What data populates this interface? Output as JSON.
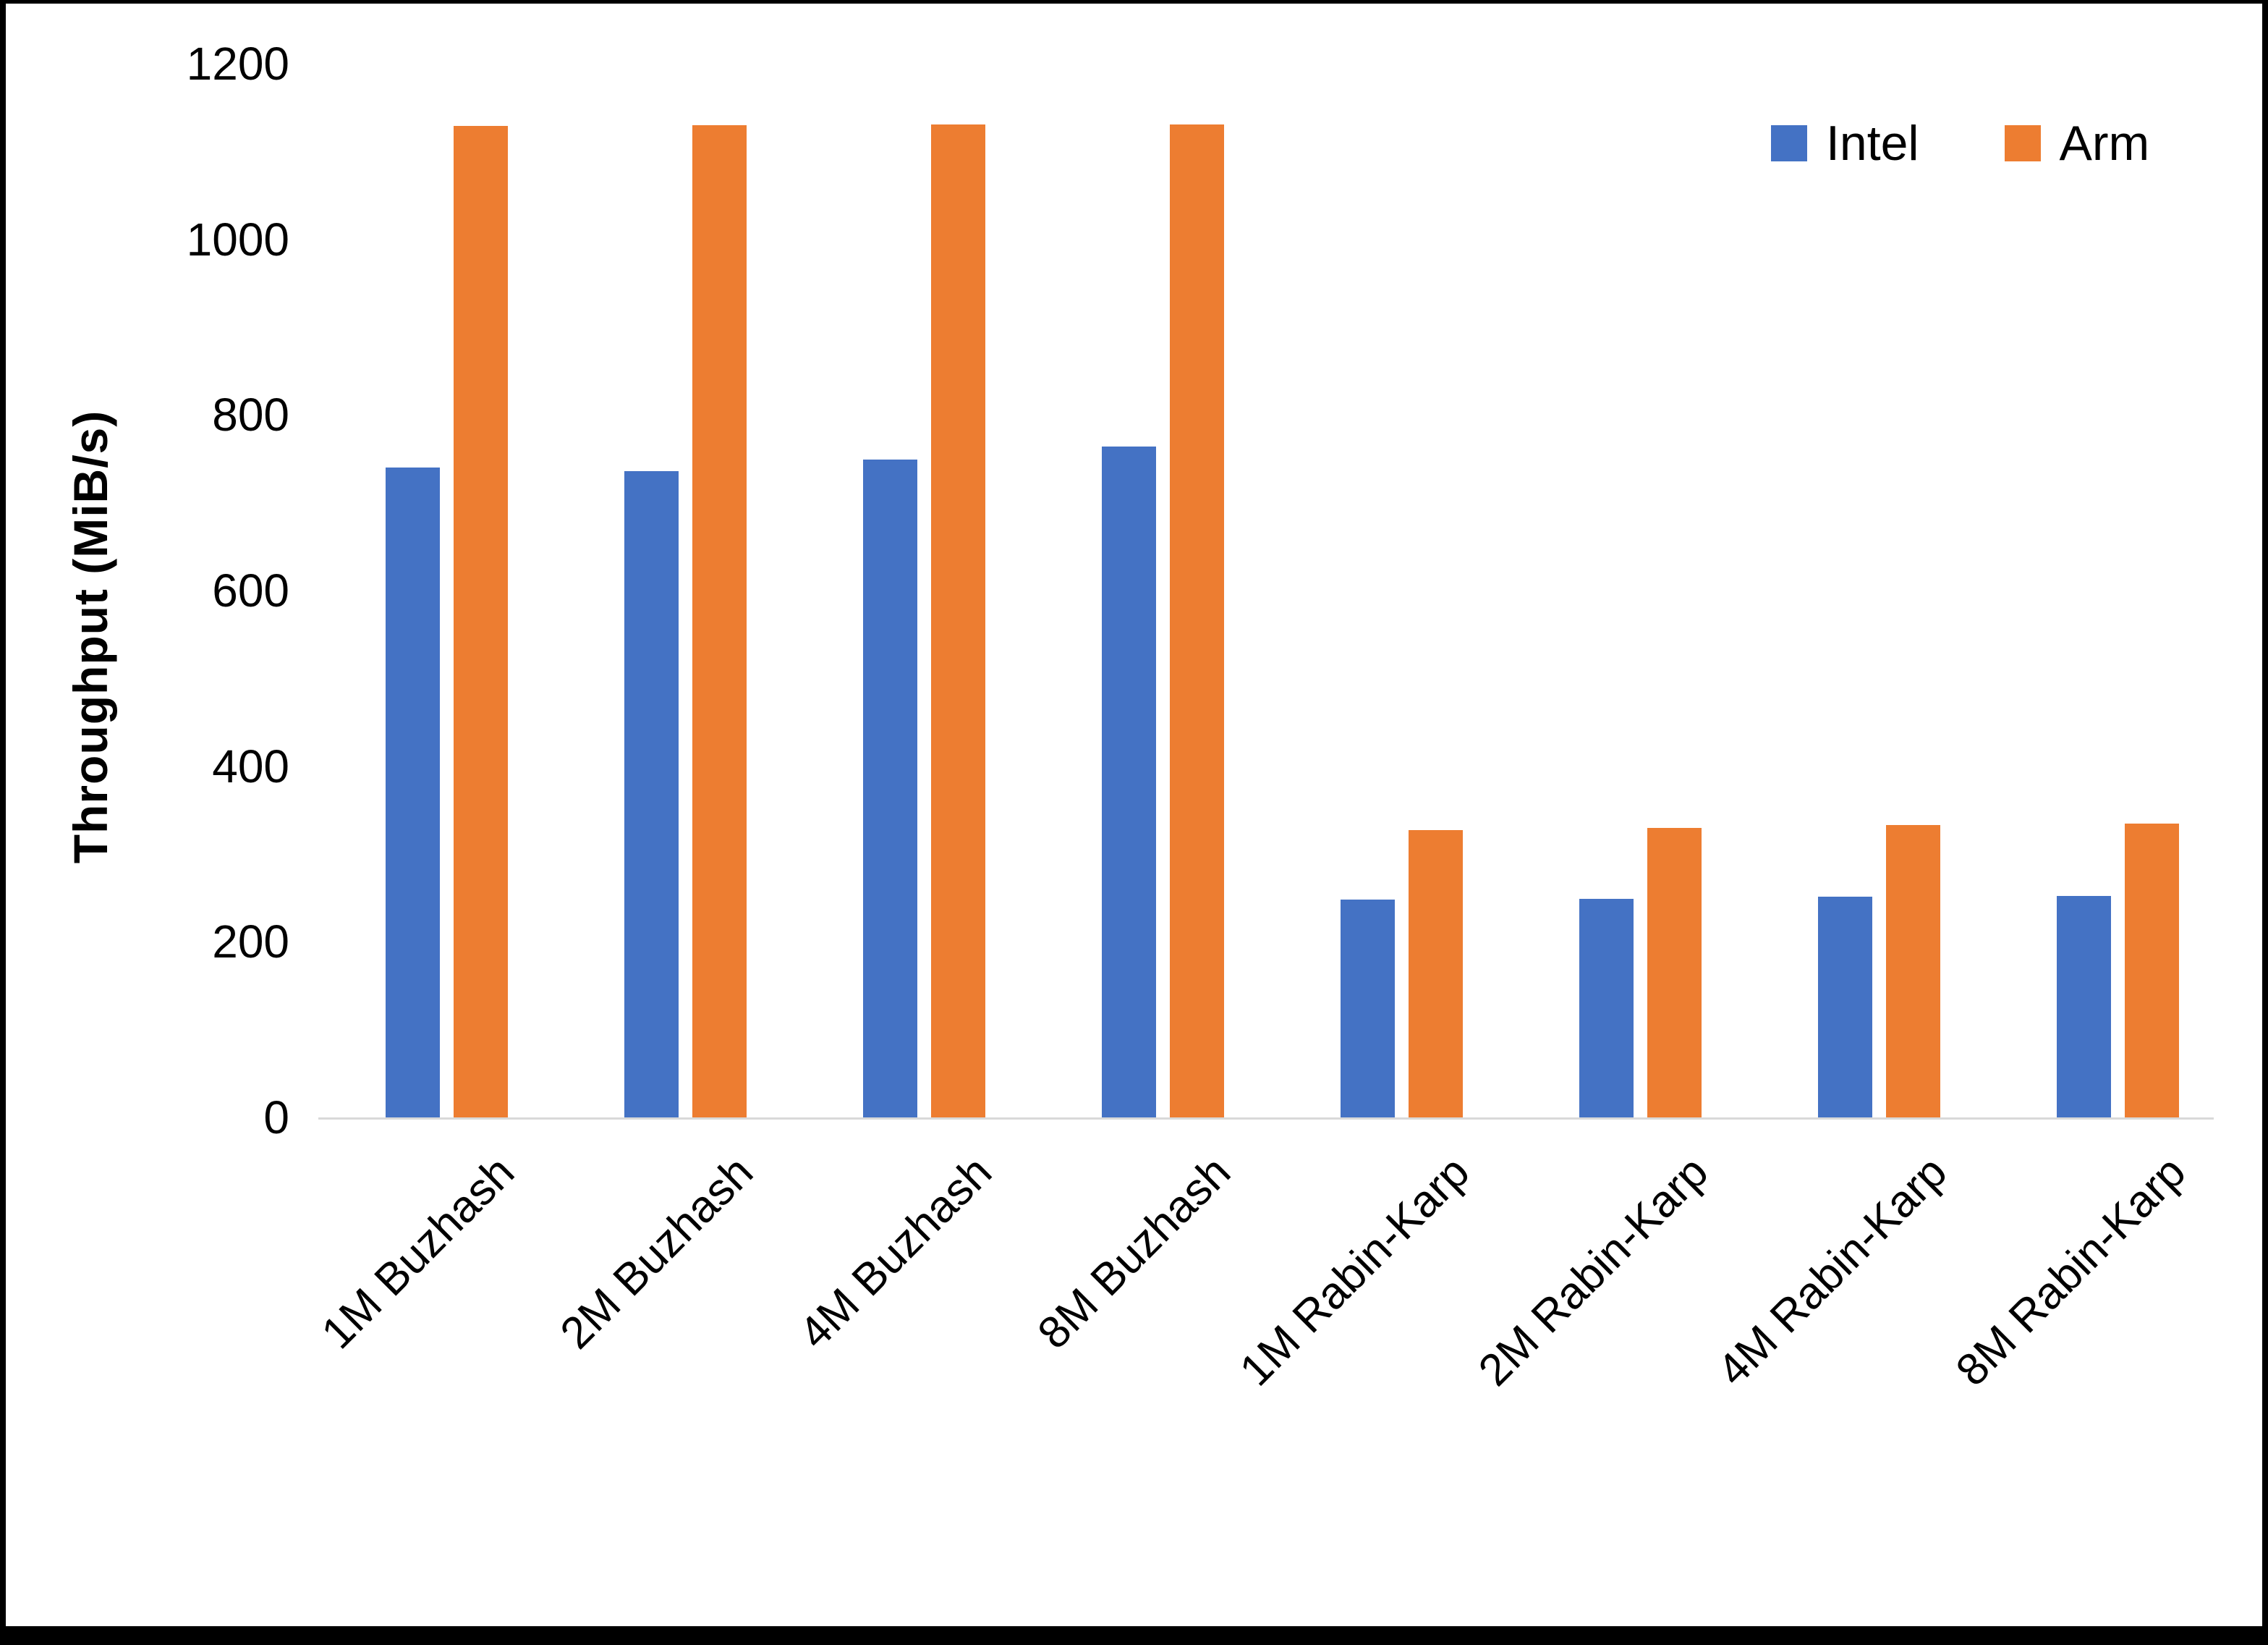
{
  "chart_data": {
    "type": "bar",
    "title": "",
    "xlabel": "",
    "ylabel": "Throughput (MiB/s)",
    "ylim": [
      0,
      1200
    ],
    "yticks": [
      0,
      200,
      400,
      600,
      800,
      1000,
      1200
    ],
    "grid": false,
    "legend_position": "top-right",
    "categories": [
      "1M Buzhash",
      "2M Buzhash",
      "4M Buzhash",
      "8M Buzhash",
      "1M Rabin-Karp",
      "2M Rabin-Karp",
      "4M Rabin-Karp",
      "8M Rabin-Karp"
    ],
    "series": [
      {
        "name": "Intel",
        "color": "#4472C4",
        "values": [
          740,
          736,
          749,
          764,
          248,
          249,
          251,
          252
        ]
      },
      {
        "name": "Arm",
        "color": "#ED7D31",
        "values": [
          1129,
          1130,
          1131,
          1131,
          327,
          330,
          333,
          335
        ]
      }
    ],
    "axis_line_color": "#D9D9D9",
    "frame_color": "#000000",
    "text_color": "#000000"
  }
}
